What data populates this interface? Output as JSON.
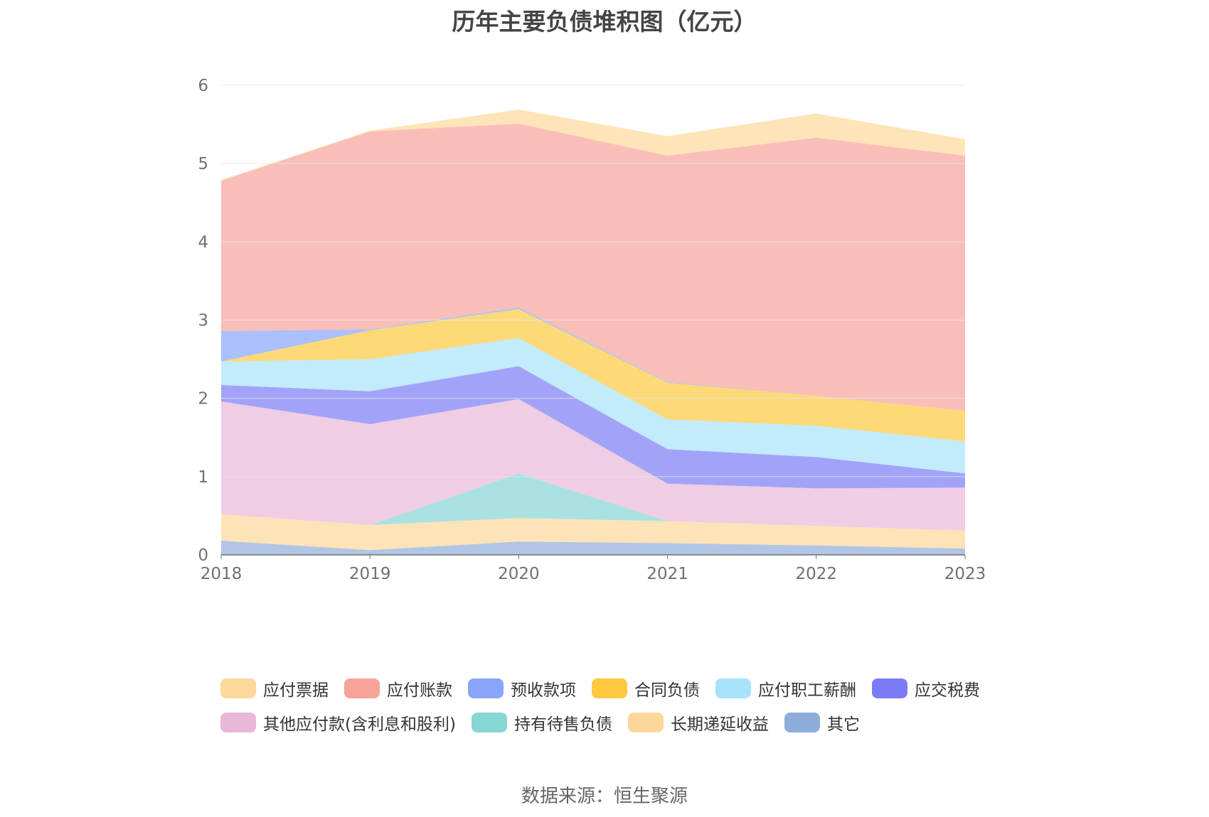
{
  "chart_data": {
    "type": "area",
    "stacked": true,
    "title": "历年主要负债堆积图（亿元）",
    "xlabel": "",
    "ylabel": "",
    "categories": [
      "2018",
      "2019",
      "2020",
      "2021",
      "2022",
      "2023"
    ],
    "ylim": [
      0,
      6
    ],
    "yticks": [
      "0",
      "1",
      "2",
      "3",
      "4",
      "5",
      "6"
    ],
    "grid": true,
    "legend_position": "bottom",
    "series": [
      {
        "name": "其它",
        "color": "#8eaed9",
        "values": [
          0.18,
          0.06,
          0.17,
          0.15,
          0.12,
          0.08
        ]
      },
      {
        "name": "长期递延收益",
        "color": "#fdd79a",
        "values": [
          0.34,
          0.32,
          0.3,
          0.28,
          0.25,
          0.23
        ]
      },
      {
        "name": "持有待售负债",
        "color": "#86d6d6",
        "values": [
          0,
          0,
          0.57,
          0,
          0,
          0
        ]
      },
      {
        "name": "其他应付款(含利息和股利)",
        "color": "#e8b8d8",
        "values": [
          1.44,
          1.29,
          0.95,
          0.48,
          0.48,
          0.55
        ]
      },
      {
        "name": "应交税费",
        "color": "#7b7cf5",
        "values": [
          0.21,
          0.42,
          0.42,
          0.44,
          0.4,
          0.18
        ]
      },
      {
        "name": "应付职工薪酬",
        "color": "#a8e2fb",
        "values": [
          0.3,
          0.41,
          0.36,
          0.38,
          0.4,
          0.41
        ]
      },
      {
        "name": "合同负债",
        "color": "#fec93f",
        "values": [
          0,
          0.37,
          0.37,
          0.47,
          0.38,
          0.39
        ]
      },
      {
        "name": "预收款项",
        "color": "#88a5fb",
        "values": [
          0.39,
          0.01,
          0.02,
          0.01,
          0,
          0
        ]
      },
      {
        "name": "应付账款",
        "color": "#f8a39a",
        "values": [
          1.92,
          2.53,
          2.35,
          2.89,
          3.3,
          3.26
        ]
      },
      {
        "name": "应付票据",
        "color": "#fdd89a",
        "values": [
          0.01,
          0.01,
          0.18,
          0.25,
          0.31,
          0.21
        ]
      }
    ],
    "legend_order": [
      "应付票据",
      "应付账款",
      "预收款项",
      "合同负债",
      "应付职工薪酬",
      "应交税费",
      "其他应付款(含利息和股利)",
      "持有待售负债",
      "长期递延收益",
      "其它"
    ]
  },
  "source": "数据来源：恒生聚源"
}
